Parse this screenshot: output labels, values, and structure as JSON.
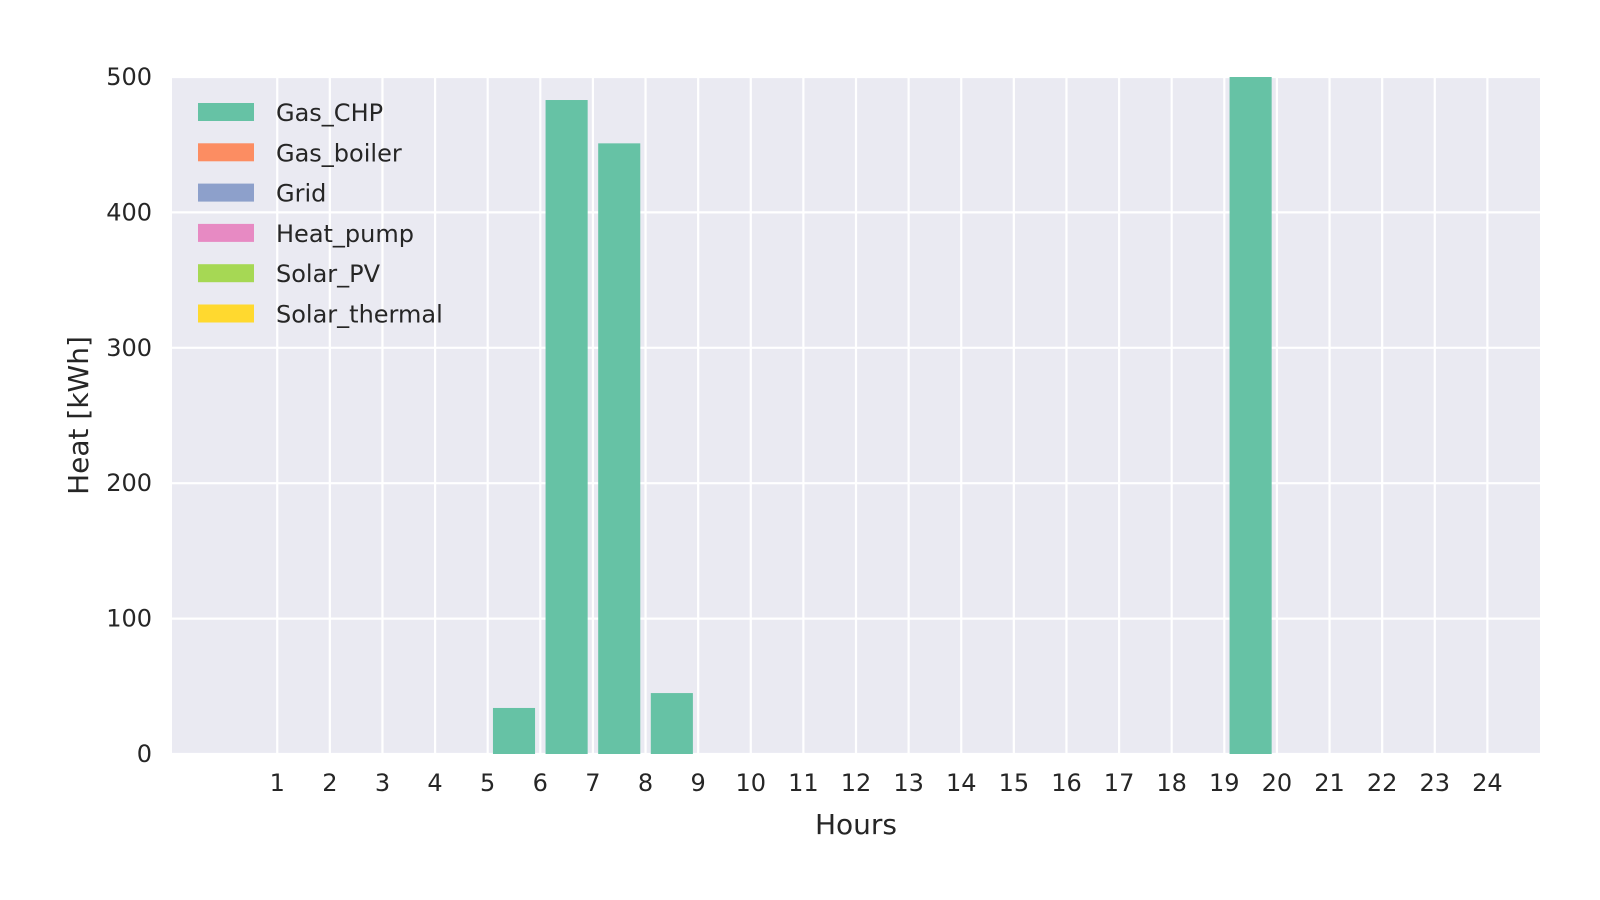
{
  "chart_data": {
    "type": "bar",
    "stacked": true,
    "xlabel": "Hours",
    "ylabel": "Heat [kWh]",
    "x_tick_labels": [
      "1",
      "2",
      "3",
      "4",
      "5",
      "6",
      "7",
      "8",
      "9",
      "10",
      "11",
      "12",
      "13",
      "14",
      "15",
      "16",
      "17",
      "18",
      "19",
      "20",
      "21",
      "22",
      "23",
      "24"
    ],
    "xlim": [
      -1,
      25
    ],
    "ylim": [
      0,
      500
    ],
    "y_ticks": [
      0,
      100,
      200,
      300,
      400,
      500
    ],
    "grid": true,
    "legend_position": "top-left",
    "background_color": "#eaeaf2",
    "grid_color": "#ffffff",
    "bars": [
      {
        "x": 5.5,
        "value": 34
      },
      {
        "x": 6.5,
        "value": 483
      },
      {
        "x": 7.5,
        "value": 451
      },
      {
        "x": 8.5,
        "value": 45
      },
      {
        "x": 19.5,
        "value": 500
      }
    ],
    "bar_series": "Gas_CHP",
    "bar_width": 0.8,
    "series": [
      {
        "name": "Gas_CHP",
        "color": "#66c2a5"
      },
      {
        "name": "Gas_boiler",
        "color": "#fc8d62"
      },
      {
        "name": "Grid",
        "color": "#8da0cb"
      },
      {
        "name": "Heat_pump",
        "color": "#e78ac3"
      },
      {
        "name": "Solar_PV",
        "color": "#a6d854"
      },
      {
        "name": "Solar_thermal",
        "color": "#ffd92f"
      }
    ]
  }
}
